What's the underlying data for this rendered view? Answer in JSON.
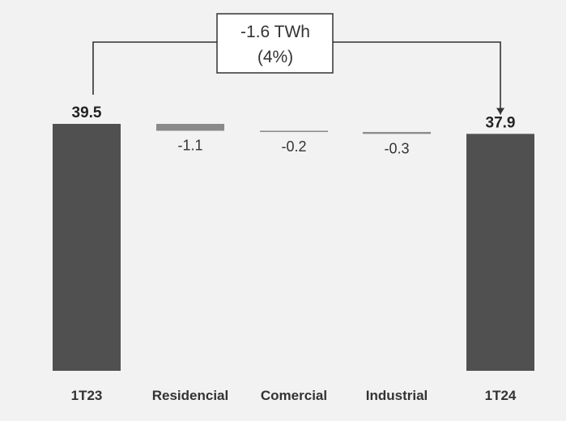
{
  "chart_data": {
    "type": "bar",
    "subtype": "waterfall",
    "categories": [
      "1T23",
      "Residencial",
      "Comercial",
      "Industrial",
      "1T24"
    ],
    "values": [
      39.5,
      -1.1,
      -0.2,
      -0.3,
      37.9
    ],
    "value_labels": [
      "39.5",
      "-1.1",
      "-0.2",
      "-0.3",
      "37.9"
    ],
    "bar_roles": [
      "total",
      "delta",
      "delta",
      "delta",
      "total"
    ],
    "annotation": {
      "line1": "-1.6 TWh",
      "line2": "(4%)"
    },
    "colors": {
      "total": "#505050",
      "delta": "#8a8a8a",
      "background": "#f2f2f2"
    },
    "grid": false,
    "legend": "none"
  }
}
